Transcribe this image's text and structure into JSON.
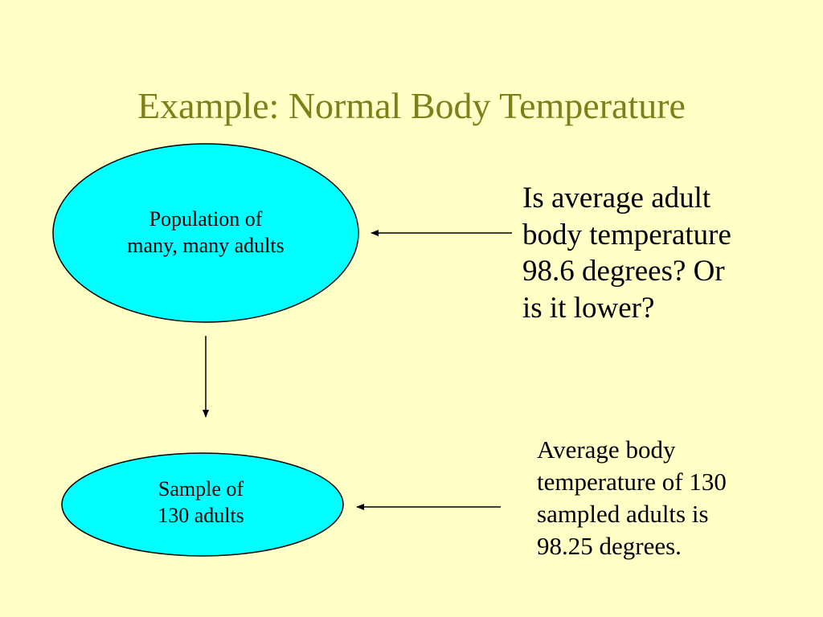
{
  "title": "Example: Normal Body Temperature",
  "nodes": {
    "population": "Population of\nmany, many adults",
    "sample": "Sample of\n130 adults"
  },
  "annotations": {
    "question": "Is average adult\nbody temperature\n98.6 degrees? Or\nis it lower?",
    "answer": "Average body\ntemperature of 130\nsampled adults is\n98.25 degrees."
  },
  "colors": {
    "background": "#FFFFC6",
    "title": "#7F7F1A",
    "ellipse_fill": "#00FFFF",
    "stroke": "#000000"
  }
}
